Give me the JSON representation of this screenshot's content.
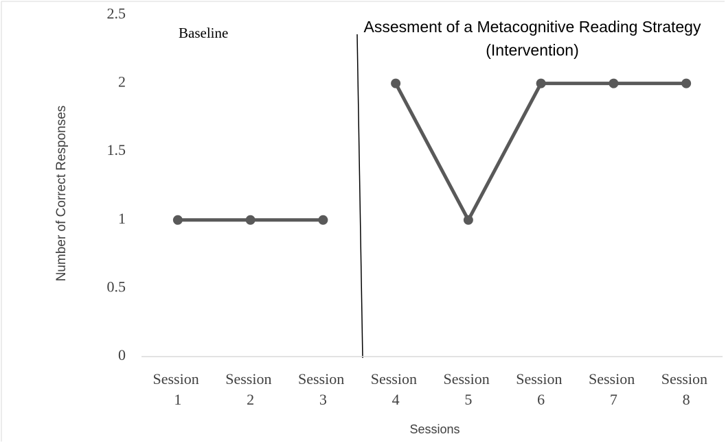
{
  "chart_data": {
    "type": "line",
    "y_axis_label": "Number of Correct Responses",
    "x_axis_label": "Sessions",
    "annotations": [
      "Baseline",
      "Assesment of a Metacognitive Reading Strategy (Intervention)"
    ],
    "categories": [
      "Session 1",
      "Session 2",
      "Session 3",
      "Session 4",
      "Session 5",
      "Session 6",
      "Session 7",
      "Session 8"
    ],
    "series": [
      {
        "color": "#595959",
        "values": [
          1,
          1,
          1,
          null,
          null,
          null,
          null,
          null
        ]
      },
      {
        "color": "#595959",
        "values": [
          null,
          null,
          null,
          2,
          1,
          2,
          2,
          2
        ]
      }
    ],
    "ylim": [
      0,
      2.5
    ],
    "yticks": [
      0,
      0.5,
      1,
      1.5,
      2,
      2.5
    ],
    "grid": false
  }
}
